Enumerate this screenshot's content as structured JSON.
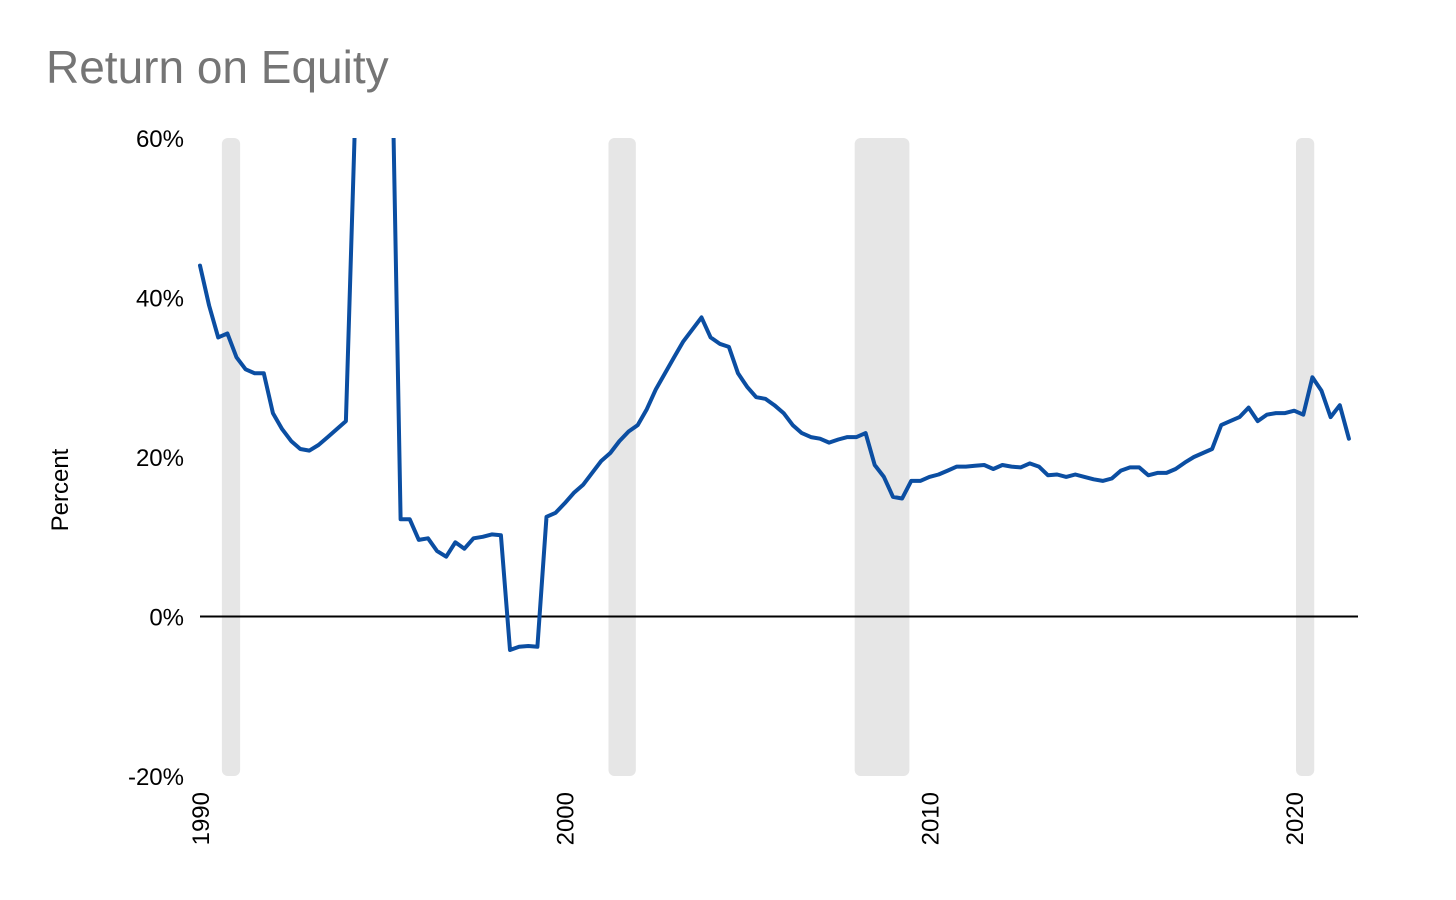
{
  "chart_data": {
    "type": "line",
    "title": "Return on Equity",
    "xlabel": "",
    "ylabel": "Percent",
    "xlim": [
      1990.0,
      2021.75
    ],
    "ylim": [
      -20,
      60
    ],
    "x_ticks": [
      1990,
      2000,
      2010,
      2020
    ],
    "x_tick_labels": [
      "1990",
      "2000",
      "2010",
      "2020"
    ],
    "y_ticks": [
      -20,
      0,
      20,
      40,
      60
    ],
    "y_tick_labels": [
      "-20%",
      "0%",
      "20%",
      "40%",
      "60%"
    ],
    "zero_line": true,
    "grid": false,
    "legend": "none",
    "colors": {
      "line": "#0B4EA2",
      "shade": "#E6E6E6",
      "axis": "#000000"
    },
    "shaded_periods": [
      {
        "start": 1990.6,
        "end": 1991.1
      },
      {
        "start": 2001.2,
        "end": 2001.95
      },
      {
        "start": 2007.95,
        "end": 2009.45
      },
      {
        "start": 2020.05,
        "end": 2020.55
      }
    ],
    "series": [
      {
        "x": [
          1990.0,
          1990.25,
          1990.5,
          1990.75,
          1991.0,
          1991.25,
          1991.5,
          1991.75,
          1992.0,
          1992.25,
          1992.5,
          1992.75,
          1993.0,
          1993.25,
          1993.5,
          1993.75,
          1994.0,
          1994.25,
          1994.4,
          1995.3,
          1995.5,
          1995.75,
          1996.0,
          1996.25,
          1996.5,
          1996.75,
          1997.0,
          1997.25,
          1997.5,
          1997.75,
          1998.0,
          1998.25,
          1998.5,
          1998.75,
          1999.0,
          1999.25,
          1999.5,
          1999.75,
          2000.0,
          2000.25,
          2000.5,
          2000.75,
          2001.0,
          2001.25,
          2001.5,
          2001.75,
          2002.0,
          2002.25,
          2002.5,
          2002.75,
          2003.0,
          2003.25,
          2003.5,
          2003.75,
          2004.0,
          2004.25,
          2004.5,
          2004.75,
          2005.0,
          2005.25,
          2005.5,
          2005.75,
          2006.0,
          2006.25,
          2006.5,
          2006.75,
          2007.0,
          2007.25,
          2007.5,
          2007.75,
          2008.0,
          2008.25,
          2008.5,
          2008.75,
          2009.0,
          2009.25,
          2009.5,
          2009.75,
          2010.0,
          2010.25,
          2010.5,
          2010.75,
          2011.0,
          2011.25,
          2011.5,
          2011.75,
          2012.0,
          2012.25,
          2012.5,
          2012.75,
          2013.0,
          2013.25,
          2013.5,
          2013.75,
          2014.0,
          2014.25,
          2014.5,
          2014.75,
          2015.0,
          2015.25,
          2015.5,
          2015.75,
          2016.0,
          2016.25,
          2016.5,
          2016.75,
          2017.0,
          2017.25,
          2017.5,
          2017.75,
          2018.0,
          2018.25,
          2018.5,
          2018.75,
          2019.0,
          2019.25,
          2019.5,
          2019.75,
          2020.0,
          2020.25,
          2020.5,
          2020.75,
          2021.0,
          2021.25,
          2021.5
        ],
        "y": [
          44.0,
          39.0,
          35.0,
          35.5,
          32.5,
          31.0,
          30.5,
          30.5,
          25.5,
          23.5,
          22.0,
          21.0,
          20.8,
          21.5,
          22.5,
          23.5,
          24.5,
          62.0,
          62.0,
          62.0,
          12.2,
          12.2,
          9.6,
          9.8,
          8.2,
          7.5,
          9.3,
          8.5,
          9.8,
          10.0,
          10.3,
          10.2,
          -4.2,
          -3.8,
          -3.7,
          -3.8,
          12.5,
          13.0,
          14.2,
          15.5,
          16.5,
          18.0,
          19.5,
          20.5,
          22.0,
          23.2,
          24.0,
          26.0,
          28.5,
          30.5,
          32.5,
          34.5,
          36.0,
          37.5,
          35.0,
          34.2,
          33.8,
          30.5,
          28.8,
          27.5,
          27.3,
          26.5,
          25.5,
          24.0,
          23.0,
          22.5,
          22.3,
          21.8,
          22.2,
          22.5,
          22.5,
          23.0,
          19.0,
          17.5,
          15.0,
          14.8,
          17.0,
          17.0,
          17.5,
          17.8,
          18.3,
          18.8,
          18.8,
          18.9,
          19.0,
          18.5,
          19.0,
          18.8,
          18.7,
          19.2,
          18.8,
          17.7,
          17.8,
          17.5,
          17.8,
          17.5,
          17.2,
          17.0,
          17.3,
          18.3,
          18.7,
          18.7,
          17.7,
          18.0,
          18.0,
          18.5,
          19.3,
          20.0,
          20.5,
          21.0,
          24.0,
          24.5,
          25.0,
          26.2,
          24.5,
          25.3,
          25.5,
          25.5,
          25.8,
          25.3,
          30.0,
          28.3,
          25.0,
          26.5,
          22.3
        ]
      }
    ]
  }
}
